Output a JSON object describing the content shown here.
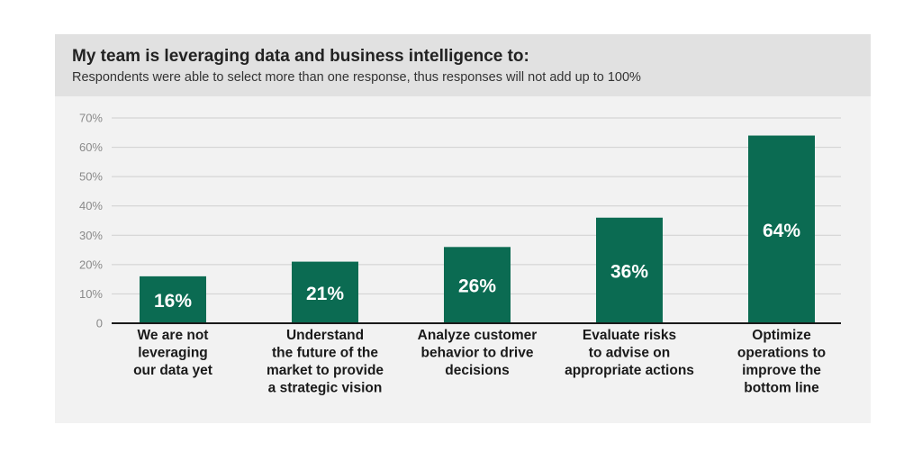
{
  "chart_data": {
    "type": "bar",
    "title": "My team is leveraging data and business intelligence to:",
    "subtitle": "Respondents were able to select more than one response, thus responses will not add up to 100%",
    "categories": [
      [
        "We are not",
        "leveraging",
        "our data yet"
      ],
      [
        "Understand",
        "the future of the",
        "market to provide",
        "a strategic vision"
      ],
      [
        "Analyze customer",
        "behavior to drive",
        "decisions"
      ],
      [
        "Evaluate risks",
        "to advise on",
        "appropriate actions"
      ],
      [
        "Optimize",
        "operations to",
        "improve the",
        "bottom line"
      ]
    ],
    "values": [
      16,
      21,
      26,
      36,
      64
    ],
    "value_labels": [
      "16%",
      "21%",
      "26%",
      "36%",
      "64%"
    ],
    "ylim": [
      0,
      70
    ],
    "y_ticks": [
      0,
      10,
      20,
      30,
      40,
      50,
      60,
      70
    ],
    "y_tick_labels": [
      "0",
      "10%",
      "20%",
      "30%",
      "40%",
      "50%",
      "60%",
      "70%"
    ],
    "grid": true,
    "legend": "none",
    "colors": {
      "bar": "#0b6b52",
      "grid": "#cfcfcf",
      "axis": "#1a1a1a",
      "card_background": "#f2f2f2",
      "header_background": "#e1e1e1"
    }
  }
}
